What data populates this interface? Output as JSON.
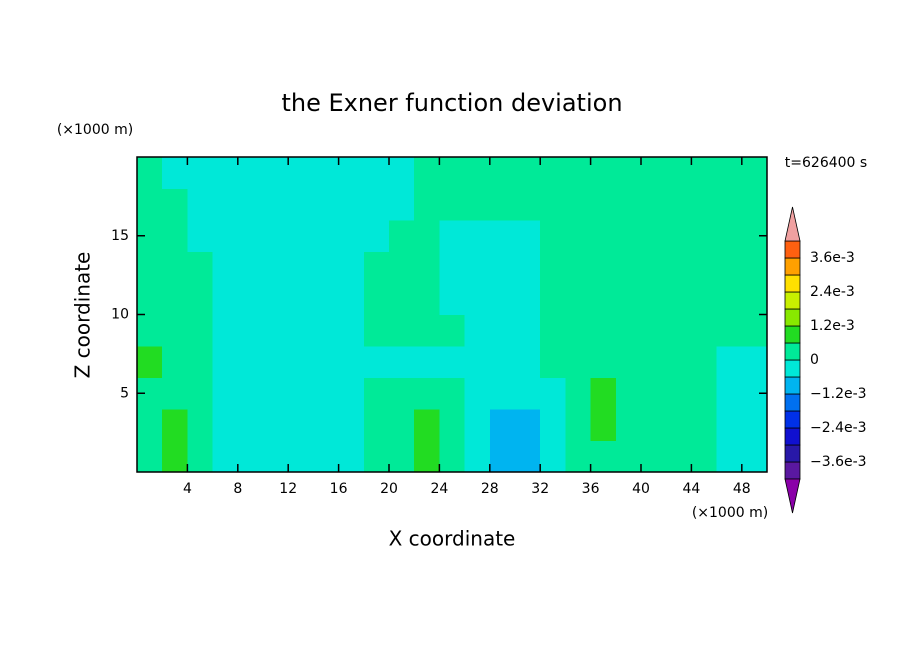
{
  "chart_data": {
    "type": "contour",
    "title": "the Exner function deviation",
    "x_label": "X coordinate",
    "y_label": "Z coordinate",
    "x_unit": "(×1000 m)",
    "y_unit": "(×1000 m)",
    "annotation": "t=626400 s",
    "xlim": [
      0,
      50
    ],
    "ylim": [
      0,
      20
    ],
    "xticks": [
      4,
      8,
      12,
      16,
      20,
      24,
      28,
      32,
      36,
      40,
      44,
      48
    ],
    "yticks": [
      5,
      10,
      15
    ],
    "x": [
      1,
      3,
      5,
      7,
      9,
      11,
      13,
      15,
      17,
      19,
      21,
      23,
      25,
      27,
      29,
      31,
      33,
      35,
      37,
      39,
      41,
      43,
      45,
      47,
      49
    ],
    "z": [
      1,
      3,
      5,
      7,
      9,
      11,
      13,
      15,
      17,
      19
    ],
    "values": [
      [
        0.0003,
        0.0009,
        0.0003,
        -0.0003,
        -0.0003,
        -0.0003,
        -0.0003,
        -0.0003,
        -0.0003,
        0.0003,
        0.0003,
        0.0009,
        0.0003,
        -0.0003,
        -0.0009,
        -0.0009,
        -0.0003,
        0.0003,
        0.0003,
        0.0003,
        0.0003,
        0.0003,
        0.0003,
        -0.0003,
        -0.0003
      ],
      [
        0.0003,
        0.0009,
        0.0003,
        -0.0003,
        -0.0003,
        -0.0003,
        -0.0003,
        -0.0003,
        -0.0003,
        0.0003,
        0.0003,
        0.0009,
        0.0003,
        -0.0003,
        -0.0009,
        -0.0009,
        -0.0003,
        0.0003,
        0.0009,
        0.0003,
        0.0003,
        0.0003,
        0.0003,
        -0.0003,
        -0.0003
      ],
      [
        0.0003,
        0.0003,
        0.0003,
        -0.0003,
        -0.0003,
        -0.0003,
        -0.0003,
        -0.0003,
        -0.0003,
        0.0003,
        0.0003,
        0.0003,
        0.0003,
        -0.0003,
        -0.0003,
        -0.0003,
        -0.0003,
        0.0003,
        0.0009,
        0.0003,
        0.0003,
        0.0003,
        0.0003,
        -0.0003,
        -0.0003
      ],
      [
        0.0009,
        0.0003,
        0.0003,
        -0.0003,
        -0.0003,
        -0.0003,
        -0.0003,
        -0.0003,
        -0.0003,
        -0.0003,
        -0.0003,
        -0.0003,
        -0.0003,
        -0.0003,
        -0.0003,
        -0.0003,
        0.0003,
        0.0003,
        0.0003,
        0.0003,
        0.0003,
        0.0003,
        0.0003,
        -0.0003,
        -0.0003
      ],
      [
        0.0003,
        0.0003,
        0.0003,
        -0.0003,
        -0.0003,
        -0.0003,
        -0.0003,
        -0.0003,
        -0.0003,
        0.0003,
        0.0003,
        0.0003,
        0.0003,
        -0.0003,
        -0.0003,
        -0.0003,
        0.0003,
        0.0003,
        0.0003,
        0.0003,
        0.0003,
        0.0003,
        0.0003,
        0.0003,
        0.0003
      ],
      [
        0.0003,
        0.0003,
        0.0003,
        -0.0003,
        -0.0003,
        -0.0003,
        -0.0003,
        -0.0003,
        -0.0003,
        0.0003,
        0.0003,
        0.0003,
        -0.0003,
        -0.0003,
        -0.0003,
        -0.0003,
        0.0003,
        0.0003,
        0.0003,
        0.0003,
        0.0003,
        0.0003,
        0.0003,
        0.0003,
        0.0003
      ],
      [
        0.0003,
        0.0003,
        0.0003,
        -0.0003,
        -0.0003,
        -0.0003,
        -0.0003,
        -0.0003,
        -0.0003,
        0.0003,
        0.0003,
        0.0003,
        -0.0003,
        -0.0003,
        -0.0003,
        -0.0003,
        0.0003,
        0.0003,
        0.0003,
        0.0003,
        0.0003,
        0.0003,
        0.0003,
        0.0003,
        0.0003
      ],
      [
        0.0003,
        0.0003,
        -0.0003,
        -0.0003,
        -0.0003,
        -0.0003,
        -0.0003,
        -0.0003,
        -0.0003,
        -0.0003,
        0.0003,
        0.0003,
        -0.0003,
        -0.0003,
        -0.0003,
        -0.0003,
        0.0003,
        0.0003,
        0.0003,
        0.0003,
        0.0003,
        0.0003,
        0.0003,
        0.0003,
        0.0003
      ],
      [
        0.0003,
        0.0003,
        -0.0003,
        -0.0003,
        -0.0003,
        -0.0003,
        -0.0003,
        -0.0003,
        -0.0003,
        -0.0003,
        -0.0003,
        0.0003,
        0.0003,
        0.0003,
        0.0003,
        0.0003,
        0.0003,
        0.0003,
        0.0003,
        0.0003,
        0.0003,
        0.0003,
        0.0003,
        0.0003,
        0.0003
      ],
      [
        0.0003,
        -0.0003,
        -0.0003,
        -0.0003,
        -0.0003,
        -0.0003,
        -0.0003,
        -0.0003,
        -0.0003,
        -0.0003,
        -0.0003,
        0.0003,
        0.0003,
        0.0003,
        0.0003,
        0.0003,
        0.0003,
        0.0003,
        0.0003,
        0.0003,
        0.0003,
        0.0003,
        0.0003,
        0.0003,
        0.0003
      ]
    ],
    "levels": [
      -0.0042,
      -0.0036,
      -0.003,
      -0.0024,
      -0.0018,
      -0.0012,
      -0.0006,
      0,
      0.0006,
      0.0012,
      0.0018,
      0.0024,
      0.003,
      0.0036,
      0.0042
    ],
    "colors": [
      "#5a18a0",
      "#2818a8",
      "#1010d0",
      "#0030e8",
      "#0070f0",
      "#00b4f0",
      "#00e8d8",
      "#00ea98",
      "#22dc22",
      "#88e800",
      "#c8f000",
      "#ffe000",
      "#ffa000",
      "#ff6010",
      "#ff2020"
    ],
    "under_color": "#8a00a8",
    "over_color": "#f0a0a0",
    "colorbar_ticks": [
      {
        "value": 0.0036,
        "label": "3.6e-3"
      },
      {
        "value": 0.0024,
        "label": "2.4e-3"
      },
      {
        "value": 0.0012,
        "label": "1.2e-3"
      },
      0,
      {
        "value": -0.0012,
        "label": "−1.2e-3"
      },
      {
        "value": -0.0024,
        "label": "−2.4e-3"
      },
      {
        "value": -0.0036,
        "label": "−3.6e-3"
      }
    ]
  }
}
